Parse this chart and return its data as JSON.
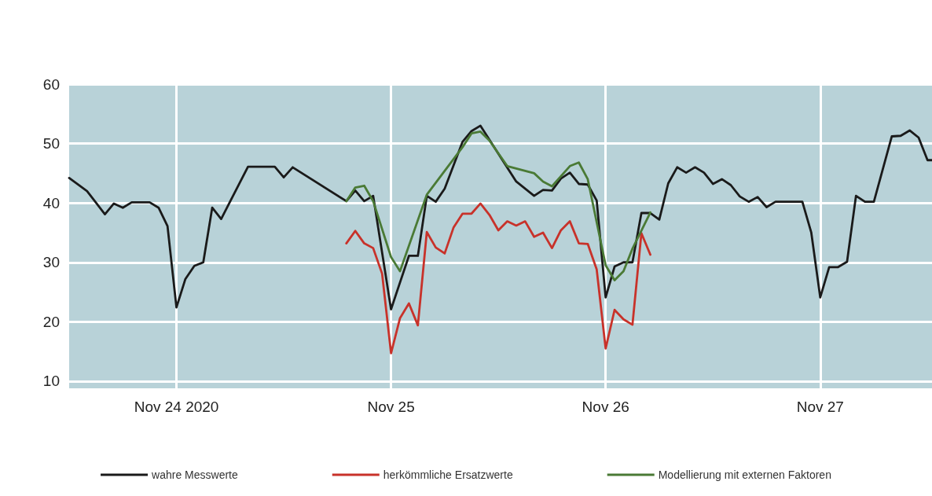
{
  "chart_data": {
    "type": "line",
    "xlim": [
      "2020-11-23T12:00",
      "2020-11-27T12:30"
    ],
    "xticks": [
      {
        "value": "2020-11-24T00:00",
        "label": "Nov 24 2020"
      },
      {
        "value": "2020-11-25T00:00",
        "label": "Nov 25"
      },
      {
        "value": "2020-11-26T00:00",
        "label": "Nov 26"
      },
      {
        "value": "2020-11-27T00:00",
        "label": "Nov 27"
      }
    ],
    "ylim": [
      8.8,
      60
    ],
    "yticks": [
      10,
      20,
      30,
      40,
      50,
      60
    ],
    "grid": true,
    "legend": "bottom",
    "marker": "none",
    "line_style": "solid",
    "series": [
      {
        "name": "wahre Messwerte",
        "color": "#1a1a1a",
        "x": [
          "2020-11-23T12:00",
          "2020-11-23T14:00",
          "2020-11-23T16:00",
          "2020-11-23T17:00",
          "2020-11-23T18:00",
          "2020-11-23T19:00",
          "2020-11-23T21:00",
          "2020-11-23T22:00",
          "2020-11-23T23:00",
          "2020-11-24T00:00",
          "2020-11-24T01:00",
          "2020-11-24T02:00",
          "2020-11-24T03:00",
          "2020-11-24T04:00",
          "2020-11-24T05:00",
          "2020-11-24T08:00",
          "2020-11-24T11:00",
          "2020-11-24T12:00",
          "2020-11-24T13:00",
          "2020-11-24T19:00",
          "2020-11-24T20:00",
          "2020-11-24T21:00",
          "2020-11-24T22:00",
          "2020-11-25T00:00",
          "2020-11-25T02:00",
          "2020-11-25T03:00",
          "2020-11-25T04:00",
          "2020-11-25T05:00",
          "2020-11-25T06:00",
          "2020-11-25T08:00",
          "2020-11-25T09:00",
          "2020-11-25T10:00",
          "2020-11-25T14:00",
          "2020-11-25T16:00",
          "2020-11-25T17:00",
          "2020-11-25T18:00",
          "2020-11-25T19:00",
          "2020-11-25T20:00",
          "2020-11-25T21:00",
          "2020-11-25T22:00",
          "2020-11-25T23:00",
          "2020-11-26T00:00",
          "2020-11-26T01:00",
          "2020-11-26T02:00",
          "2020-11-26T03:00",
          "2020-11-26T04:00",
          "2020-11-26T05:00",
          "2020-11-26T06:00",
          "2020-11-26T07:00",
          "2020-11-26T08:00",
          "2020-11-26T09:00",
          "2020-11-26T10:00",
          "2020-11-26T11:00",
          "2020-11-26T12:00",
          "2020-11-26T13:00",
          "2020-11-26T14:00",
          "2020-11-26T15:00",
          "2020-11-26T16:00",
          "2020-11-26T17:00",
          "2020-11-26T18:00",
          "2020-11-26T19:00",
          "2020-11-26T22:00",
          "2020-11-26T23:00",
          "2020-11-27T00:00",
          "2020-11-27T01:00",
          "2020-11-27T02:00",
          "2020-11-27T03:00",
          "2020-11-27T04:00",
          "2020-11-27T05:00",
          "2020-11-27T06:00",
          "2020-11-27T08:00",
          "2020-11-27T09:00",
          "2020-11-27T10:00",
          "2020-11-27T11:00",
          "2020-11-27T12:00",
          "2020-11-27T12:30"
        ],
        "values": [
          44.2,
          42.0,
          38.1,
          39.9,
          39.2,
          40.1,
          40.1,
          39.2,
          36.1,
          22.4,
          27.2,
          29.4,
          30.0,
          39.2,
          37.3,
          46.1,
          46.1,
          44.3,
          46.0,
          40.3,
          42.1,
          40.3,
          41.2,
          22.1,
          31.1,
          31.1,
          41.2,
          40.2,
          42.4,
          50.3,
          52.1,
          53.0,
          43.6,
          41.2,
          42.2,
          42.1,
          44.1,
          45.1,
          43.2,
          43.1,
          40.4,
          24.1,
          29.3,
          30.0,
          30.0,
          38.3,
          38.3,
          37.2,
          43.3,
          46.0,
          45.1,
          46.0,
          45.1,
          43.2,
          44.0,
          43.0,
          41.1,
          40.2,
          41.0,
          39.3,
          40.2,
          40.2,
          35.0,
          24.1,
          29.2,
          29.2,
          30.1,
          41.2,
          40.2,
          40.2,
          51.2,
          51.3,
          52.2,
          51.0,
          47.2,
          47.2
        ]
      },
      {
        "name": "herkömmliche Ersatzwerte",
        "color": "#c8322a",
        "x": [
          "2020-11-24T19:00",
          "2020-11-24T20:00",
          "2020-11-24T21:00",
          "2020-11-24T22:00",
          "2020-11-24T23:00",
          "2020-11-25T00:00",
          "2020-11-25T01:00",
          "2020-11-25T02:00",
          "2020-11-25T03:00",
          "2020-11-25T04:00",
          "2020-11-25T05:00",
          "2020-11-25T06:00",
          "2020-11-25T07:00",
          "2020-11-25T08:00",
          "2020-11-25T09:00",
          "2020-11-25T10:00",
          "2020-11-25T11:00",
          "2020-11-25T12:00",
          "2020-11-25T13:00",
          "2020-11-25T14:00",
          "2020-11-25T15:00",
          "2020-11-25T16:00",
          "2020-11-25T17:00",
          "2020-11-25T18:00",
          "2020-11-25T19:00",
          "2020-11-25T20:00",
          "2020-11-25T21:00",
          "2020-11-25T22:00",
          "2020-11-25T23:00",
          "2020-11-26T00:00",
          "2020-11-26T01:00",
          "2020-11-26T02:00",
          "2020-11-26T03:00",
          "2020-11-26T04:00",
          "2020-11-26T05:00"
        ],
        "values": [
          33.2,
          35.3,
          33.2,
          32.4,
          28.1,
          14.7,
          20.6,
          23.1,
          19.4,
          35.1,
          32.5,
          31.5,
          35.9,
          38.2,
          38.2,
          39.9,
          38.0,
          35.4,
          36.9,
          36.2,
          36.9,
          34.3,
          35.0,
          32.4,
          35.4,
          36.9,
          33.2,
          33.1,
          28.8,
          15.5,
          22.0,
          20.4,
          19.5,
          34.9,
          31.3
        ]
      },
      {
        "name": "Modellierung mit externen Faktoren",
        "color": "#4a7a35",
        "x": [
          "2020-11-24T19:00",
          "2020-11-24T20:00",
          "2020-11-24T21:00",
          "2020-11-24T22:00",
          "2020-11-25T00:00",
          "2020-11-25T01:00",
          "2020-11-25T04:00",
          "2020-11-25T08:00",
          "2020-11-25T09:00",
          "2020-11-25T10:00",
          "2020-11-25T11:00",
          "2020-11-25T13:00",
          "2020-11-25T16:00",
          "2020-11-25T17:00",
          "2020-11-25T18:00",
          "2020-11-25T20:00",
          "2020-11-25T21:00",
          "2020-11-25T22:00",
          "2020-11-26T00:00",
          "2020-11-26T01:00",
          "2020-11-26T02:00",
          "2020-11-26T03:00",
          "2020-11-26T05:00"
        ],
        "values": [
          40.3,
          42.6,
          42.9,
          40.3,
          30.9,
          28.5,
          41.4,
          49.4,
          51.7,
          52.0,
          50.5,
          46.2,
          45.0,
          43.6,
          42.8,
          46.2,
          46.8,
          44.0,
          29.5,
          27.0,
          28.5,
          32.3,
          38.4
        ]
      }
    ]
  }
}
